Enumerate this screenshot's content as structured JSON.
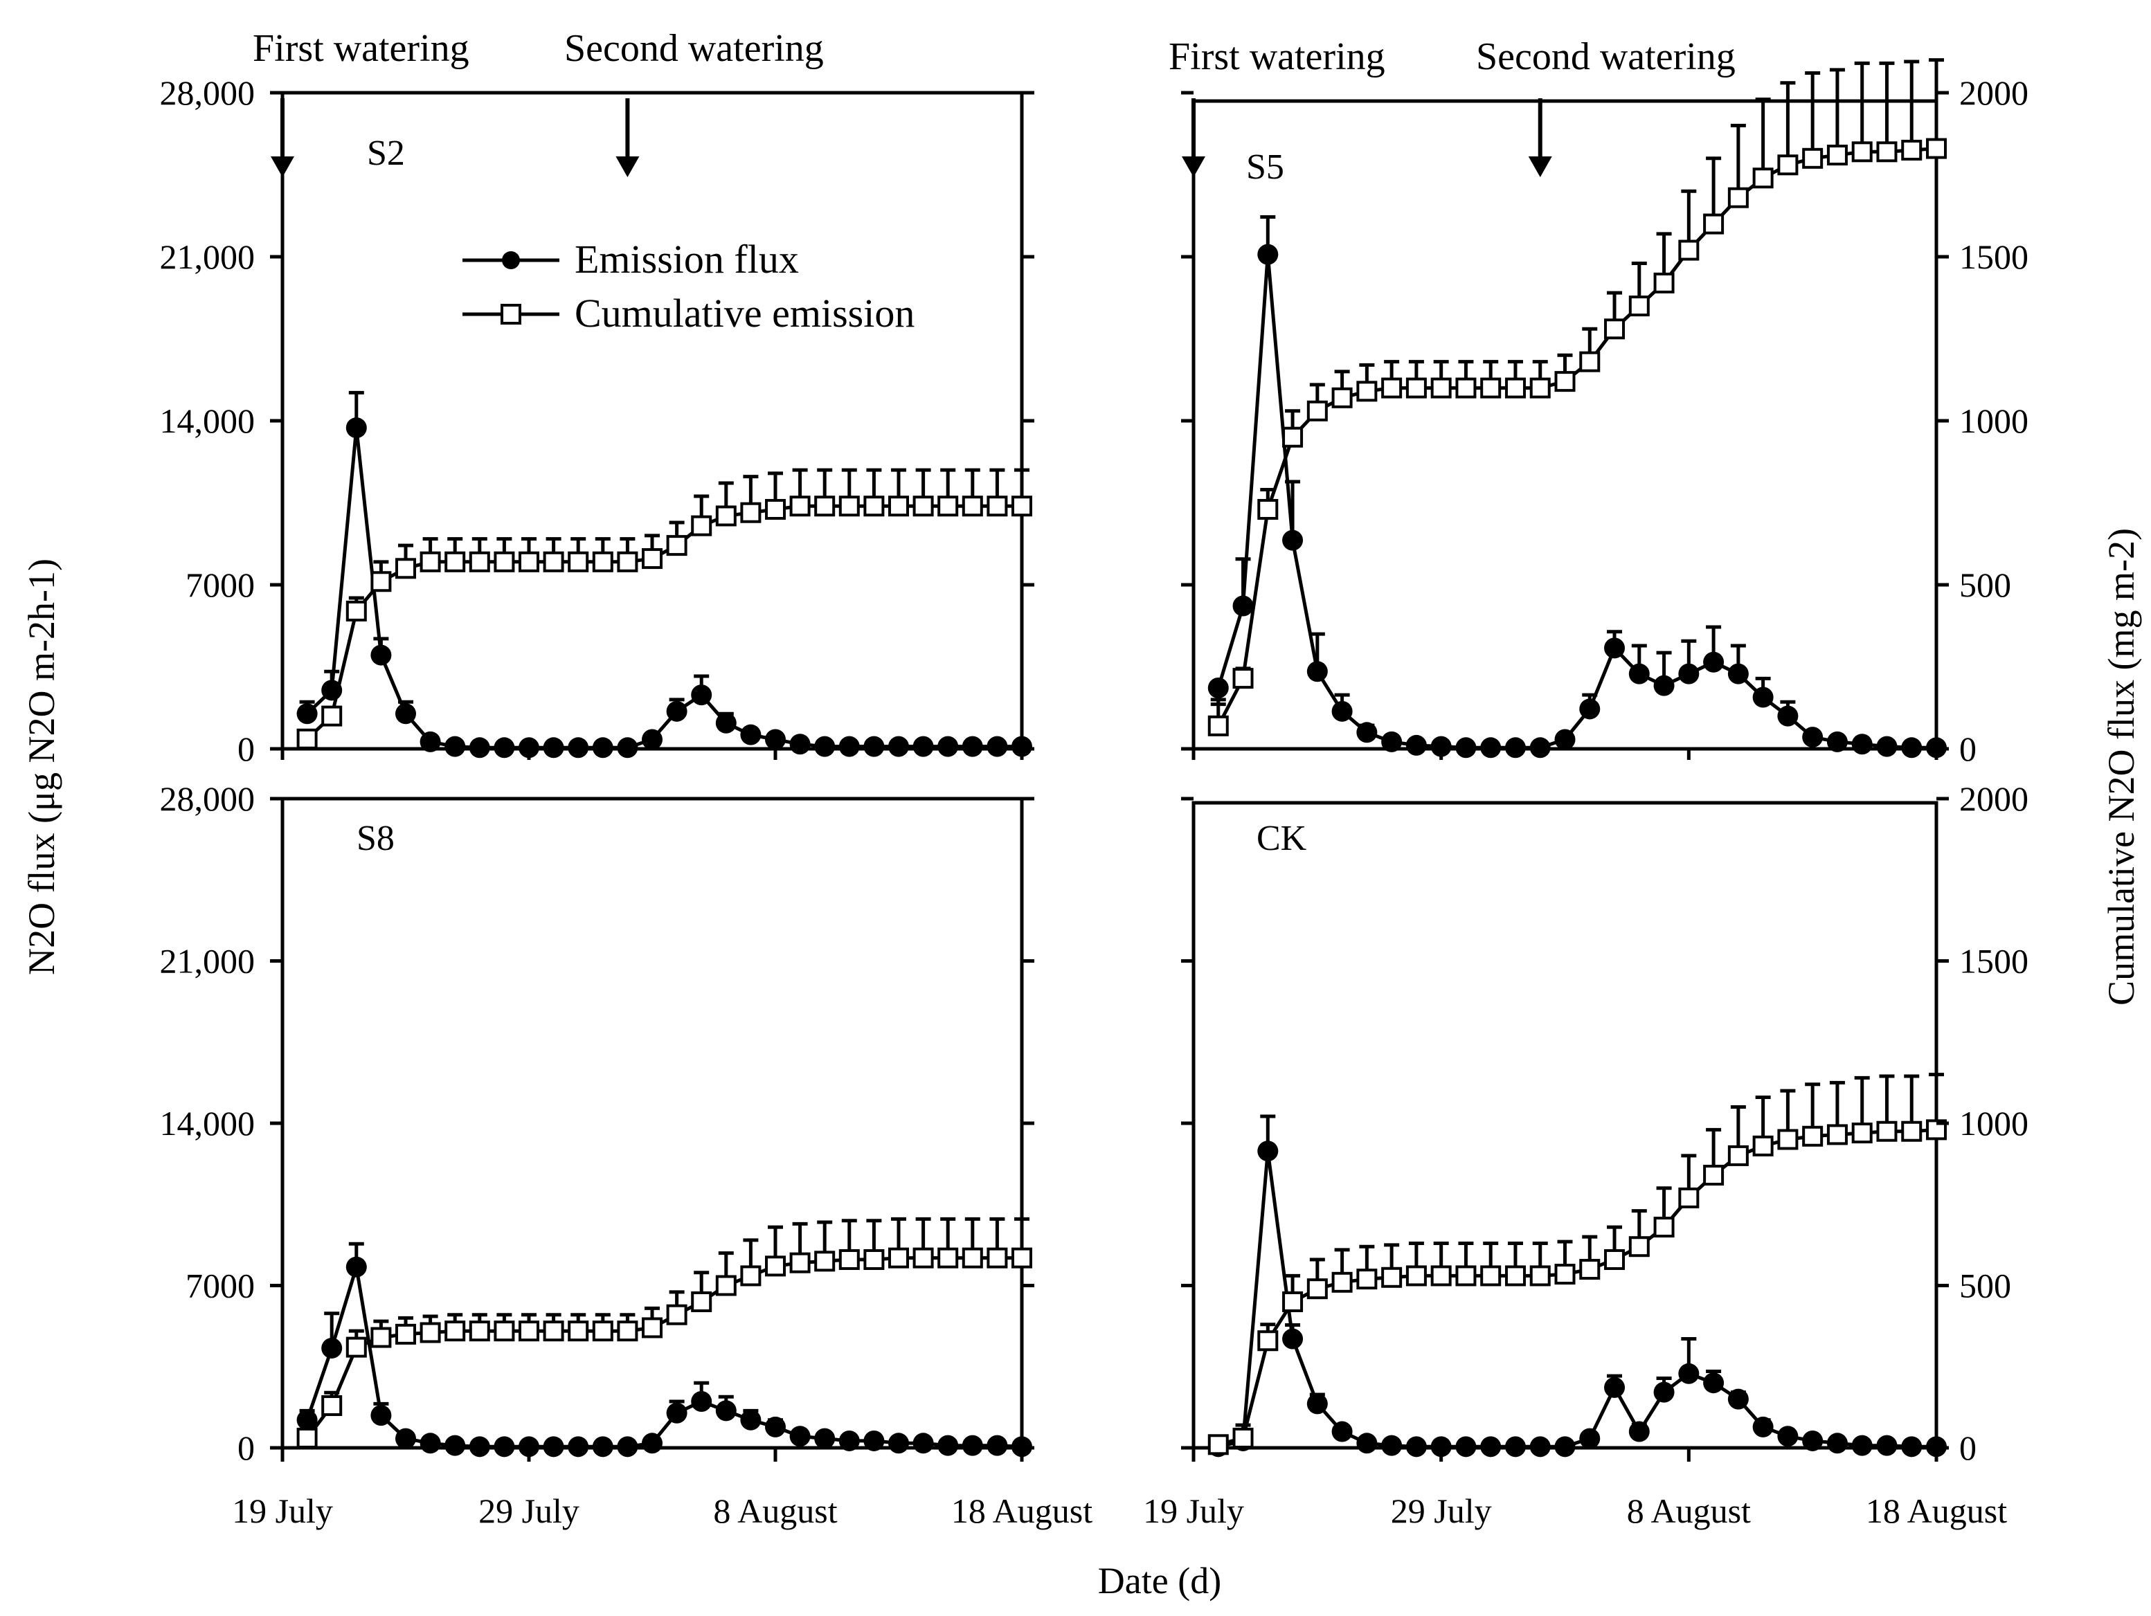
{
  "figure": {
    "left_axis_title": "N2O flux (μg N2O m-2h-1)",
    "right_axis_title": "Cumulative N2O flux (mg m-2)",
    "x_axis_title": "Date (d)",
    "x_tick_labels": [
      "19 July",
      "29 July",
      "8 August",
      "18 August"
    ],
    "left_tick_labels": [
      "0",
      "7000",
      "14,000",
      "21,000",
      "28,000"
    ],
    "right_tick_labels": [
      "0",
      "500",
      "1000",
      "1500",
      "2000"
    ],
    "annotations": {
      "first": "First watering",
      "second": "Second watering"
    },
    "legend": {
      "flux": "Emission flux",
      "cumulative": "Cumulative emission"
    }
  },
  "chart_data": [
    {
      "type": "line",
      "panel": "S2",
      "title": "S2",
      "xlabel": "Date (d)",
      "ylabel": "N2O flux (μg N2O m-2h-1)",
      "y2label": "Cumulative N2O flux (mg m-2)",
      "xlim": [
        0,
        30
      ],
      "ylim": [
        0,
        28000
      ],
      "y2lim": [
        0,
        2000
      ],
      "watering_days": [
        0,
        14
      ],
      "series": [
        {
          "name": "Emission flux",
          "axis": "left",
          "x": [
            1,
            2,
            3,
            4,
            5,
            6,
            7,
            8,
            9,
            10,
            11,
            12,
            13,
            14,
            15,
            16,
            17,
            18,
            19,
            20,
            21,
            22,
            23,
            24,
            25,
            26,
            27,
            28,
            29,
            30
          ],
          "values": [
            1500,
            2500,
            13700,
            4000,
            1500,
            300,
            100,
            50,
            50,
            50,
            50,
            50,
            50,
            50,
            400,
            1600,
            2300,
            1100,
            600,
            400,
            200,
            100,
            100,
            100,
            100,
            100,
            100,
            100,
            100,
            100
          ],
          "errors": [
            500,
            800,
            1500,
            700,
            500,
            100,
            50,
            30,
            30,
            30,
            30,
            30,
            30,
            30,
            200,
            500,
            800,
            400,
            200,
            150,
            100,
            50,
            50,
            50,
            50,
            50,
            50,
            50,
            50,
            50
          ]
        },
        {
          "name": "Cumulative emission",
          "axis": "right",
          "x": [
            1,
            2,
            3,
            4,
            5,
            6,
            7,
            8,
            9,
            10,
            11,
            12,
            13,
            14,
            15,
            16,
            17,
            18,
            19,
            20,
            21,
            22,
            23,
            24,
            25,
            26,
            27,
            28,
            29,
            30
          ],
          "values": [
            30,
            100,
            420,
            510,
            550,
            570,
            570,
            570,
            570,
            570,
            570,
            570,
            570,
            570,
            580,
            620,
            680,
            710,
            720,
            730,
            740,
            740,
            740,
            740,
            740,
            740,
            740,
            740,
            740,
            740
          ],
          "errors": [
            10,
            20,
            40,
            60,
            70,
            70,
            70,
            70,
            70,
            70,
            70,
            70,
            70,
            70,
            70,
            70,
            90,
            100,
            110,
            110,
            110,
            110,
            110,
            110,
            110,
            110,
            110,
            110,
            110,
            110
          ]
        }
      ]
    },
    {
      "type": "line",
      "panel": "S5",
      "title": "S5",
      "xlabel": "Date (d)",
      "ylabel": "N2O flux (μg N2O m-2h-1)",
      "y2label": "Cumulative N2O flux (mg m-2)",
      "xlim": [
        0,
        30
      ],
      "ylim": [
        0,
        28000
      ],
      "y2lim": [
        0,
        2000
      ],
      "watering_days": [
        0,
        14
      ],
      "series": [
        {
          "name": "Emission flux",
          "axis": "left",
          "x": [
            1,
            2,
            3,
            4,
            5,
            6,
            7,
            8,
            9,
            10,
            11,
            12,
            13,
            14,
            15,
            16,
            17,
            18,
            19,
            20,
            21,
            22,
            23,
            24,
            25,
            26,
            27,
            28,
            29,
            30
          ],
          "values": [
            2600,
            6100,
            21100,
            8900,
            3300,
            1600,
            700,
            300,
            150,
            100,
            50,
            50,
            50,
            50,
            400,
            1700,
            4300,
            3200,
            2700,
            3200,
            3700,
            3200,
            2200,
            1400,
            500,
            300,
            200,
            100,
            50,
            50
          ],
          "errors": [
            700,
            2000,
            1600,
            2500,
            1600,
            700,
            300,
            150,
            100,
            50,
            30,
            30,
            30,
            30,
            200,
            600,
            700,
            1200,
            1400,
            1400,
            1500,
            1200,
            800,
            600,
            200,
            150,
            100,
            50,
            30,
            30
          ],
          "caps": [
            "bottom",
            "top",
            "top",
            "top",
            "top",
            "top",
            "top",
            "bottom",
            "bottom",
            "bottom",
            "bottom",
            "bottom",
            "bottom",
            "bottom",
            "bottom",
            "top",
            "top",
            "top",
            "top",
            "top",
            "top",
            "top",
            "top",
            "top",
            "bottom",
            "bottom",
            "bottom",
            "bottom",
            "bottom",
            "bottom"
          ]
        },
        {
          "name": "Cumulative emission",
          "axis": "right",
          "x": [
            1,
            2,
            3,
            4,
            5,
            6,
            7,
            8,
            9,
            10,
            11,
            12,
            13,
            14,
            15,
            16,
            17,
            18,
            19,
            20,
            21,
            22,
            23,
            24,
            25,
            26,
            27,
            28,
            29,
            30
          ],
          "values": [
            70,
            215,
            730,
            950,
            1030,
            1070,
            1090,
            1100,
            1100,
            1100,
            1100,
            1100,
            1100,
            1100,
            1120,
            1180,
            1280,
            1350,
            1420,
            1520,
            1600,
            1680,
            1740,
            1780,
            1800,
            1810,
            1820,
            1820,
            1825,
            1830
          ],
          "errors": [
            80,
            30,
            60,
            80,
            80,
            80,
            80,
            80,
            80,
            80,
            80,
            80,
            80,
            80,
            80,
            100,
            110,
            130,
            150,
            180,
            200,
            220,
            240,
            250,
            260,
            260,
            270,
            270,
            270,
            270
          ]
        }
      ]
    },
    {
      "type": "line",
      "panel": "S8",
      "title": "S8",
      "xlabel": "Date (d)",
      "ylabel": "N2O flux (μg N2O m-2h-1)",
      "y2label": "Cumulative N2O flux (mg m-2)",
      "xlim": [
        0,
        30
      ],
      "ylim": [
        0,
        28000
      ],
      "y2lim": [
        0,
        2000
      ],
      "watering_days": [
        0,
        14
      ],
      "series": [
        {
          "name": "Emission flux",
          "axis": "left",
          "x": [
            1,
            2,
            3,
            4,
            5,
            6,
            7,
            8,
            9,
            10,
            11,
            12,
            13,
            14,
            15,
            16,
            17,
            18,
            19,
            20,
            21,
            22,
            23,
            24,
            25,
            26,
            27,
            28,
            29,
            30
          ],
          "values": [
            1200,
            4300,
            7800,
            1400,
            400,
            200,
            100,
            50,
            50,
            50,
            50,
            50,
            50,
            50,
            200,
            1500,
            2000,
            1600,
            1200,
            900,
            500,
            400,
            300,
            300,
            200,
            200,
            100,
            100,
            100,
            50
          ],
          "errors": [
            400,
            1500,
            1000,
            500,
            200,
            100,
            50,
            30,
            30,
            30,
            30,
            30,
            30,
            30,
            100,
            500,
            800,
            600,
            400,
            300,
            200,
            100,
            100,
            100,
            100,
            50,
            50,
            50,
            50,
            30
          ]
        },
        {
          "name": "Cumulative emission",
          "axis": "right",
          "x": [
            1,
            2,
            3,
            4,
            5,
            6,
            7,
            8,
            9,
            10,
            11,
            12,
            13,
            14,
            15,
            16,
            17,
            18,
            19,
            20,
            21,
            22,
            23,
            24,
            25,
            26,
            27,
            28,
            29,
            30
          ],
          "values": [
            30,
            130,
            310,
            340,
            350,
            355,
            360,
            360,
            360,
            360,
            360,
            360,
            360,
            360,
            370,
            410,
            450,
            500,
            530,
            560,
            570,
            575,
            580,
            580,
            585,
            585,
            585,
            585,
            585,
            585
          ],
          "errors": [
            10,
            40,
            50,
            50,
            50,
            50,
            50,
            50,
            50,
            50,
            50,
            50,
            50,
            50,
            60,
            70,
            90,
            100,
            110,
            120,
            120,
            120,
            120,
            120,
            120,
            120,
            120,
            120,
            120,
            120
          ]
        }
      ]
    },
    {
      "type": "line",
      "panel": "CK",
      "title": "CK",
      "xlabel": "Date (d)",
      "ylabel": "N2O flux (μg N2O m-2h-1)",
      "y2label": "Cumulative N2O flux (mg m-2)",
      "xlim": [
        0,
        30
      ],
      "ylim": [
        0,
        28000
      ],
      "y2lim": [
        0,
        2000
      ],
      "watering_days": [
        0,
        14
      ],
      "series": [
        {
          "name": "Emission flux",
          "axis": "left",
          "x": [
            1,
            2,
            3,
            4,
            5,
            6,
            7,
            8,
            9,
            10,
            11,
            12,
            13,
            14,
            15,
            16,
            17,
            18,
            19,
            20,
            21,
            22,
            23,
            24,
            25,
            26,
            27,
            28,
            29,
            30
          ],
          "values": [
            50,
            300,
            12800,
            4700,
            1900,
            700,
            200,
            100,
            50,
            50,
            50,
            50,
            50,
            50,
            50,
            400,
            2600,
            700,
            2400,
            3200,
            2800,
            2100,
            900,
            500,
            300,
            200,
            100,
            100,
            50,
            50
          ],
          "errors": [
            30,
            200,
            1500,
            600,
            400,
            200,
            100,
            50,
            30,
            30,
            30,
            30,
            30,
            30,
            30,
            100,
            500,
            300,
            600,
            1500,
            500,
            300,
            300,
            200,
            100,
            100,
            50,
            50,
            30,
            30
          ]
        },
        {
          "name": "Cumulative emission",
          "axis": "right",
          "x": [
            1,
            2,
            3,
            4,
            5,
            6,
            7,
            8,
            9,
            10,
            11,
            12,
            13,
            14,
            15,
            16,
            17,
            18,
            19,
            20,
            21,
            22,
            23,
            24,
            25,
            26,
            27,
            28,
            29,
            30
          ],
          "values": [
            10,
            30,
            330,
            450,
            490,
            510,
            520,
            525,
            530,
            530,
            530,
            530,
            530,
            530,
            535,
            550,
            580,
            620,
            680,
            770,
            840,
            900,
            930,
            950,
            960,
            965,
            970,
            975,
            975,
            980
          ],
          "errors": [
            10,
            40,
            50,
            80,
            90,
            100,
            100,
            100,
            100,
            100,
            100,
            100,
            100,
            100,
            100,
            100,
            100,
            110,
            120,
            130,
            140,
            150,
            150,
            150,
            160,
            160,
            170,
            170,
            170,
            170
          ]
        }
      ]
    }
  ]
}
